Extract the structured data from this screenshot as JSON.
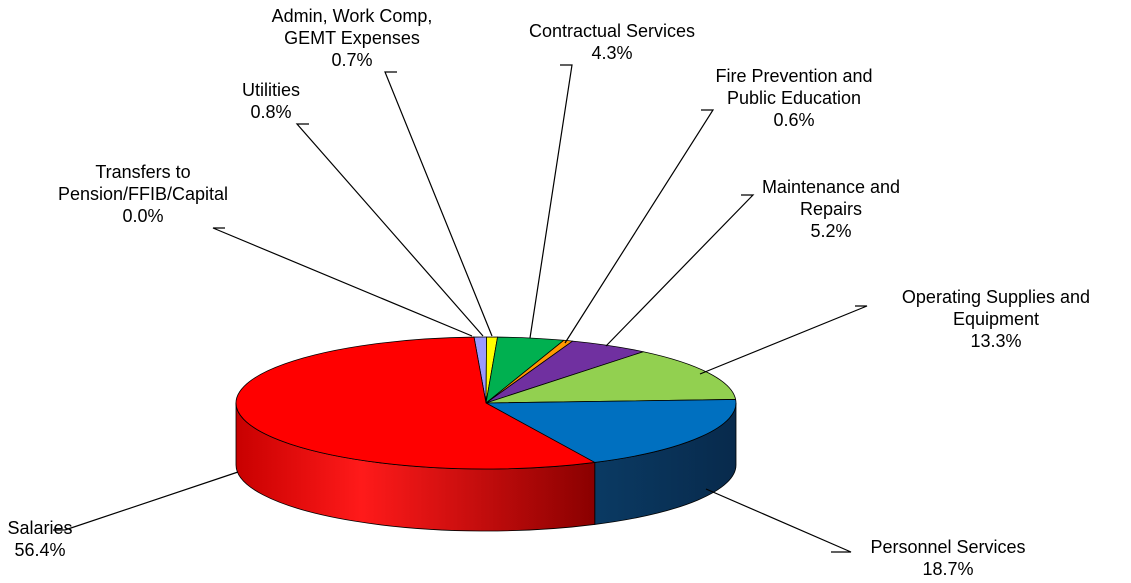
{
  "chart_data": {
    "type": "pie",
    "title": "",
    "three_d": true,
    "slices": [
      {
        "label": [
          "Transfers to",
          "Pension/FFIB/Capital"
        ],
        "pct": "0.0%",
        "value": 0.0,
        "color": "#7f7f7f"
      },
      {
        "label": [
          "Utilities"
        ],
        "pct": "0.8%",
        "value": 0.8,
        "color": "#9999ff"
      },
      {
        "label": [
          "Admin, Work Comp,",
          "GEMT Expenses"
        ],
        "pct": "0.7%",
        "value": 0.7,
        "color": "#ffff00"
      },
      {
        "label": [
          "Contractual Services"
        ],
        "pct": "4.3%",
        "value": 4.3,
        "color": "#00b050"
      },
      {
        "label": [
          "Fire Prevention and",
          "Public Education"
        ],
        "pct": "0.6%",
        "value": 0.6,
        "color": "#ff9900"
      },
      {
        "label": [
          "Maintenance and",
          "Repairs"
        ],
        "pct": "5.2%",
        "value": 5.2,
        "color": "#7030a0"
      },
      {
        "label": [
          "Operating Supplies and",
          "Equipment"
        ],
        "pct": "13.3%",
        "value": 13.3,
        "color": "#92d050"
      },
      {
        "label": [
          "Personnel Services"
        ],
        "pct": "18.7%",
        "value": 18.7,
        "color": "#0070c0"
      },
      {
        "label": [
          "Salaries"
        ],
        "pct": "56.4%",
        "value": 56.4,
        "color": "#ff0000"
      }
    ]
  }
}
